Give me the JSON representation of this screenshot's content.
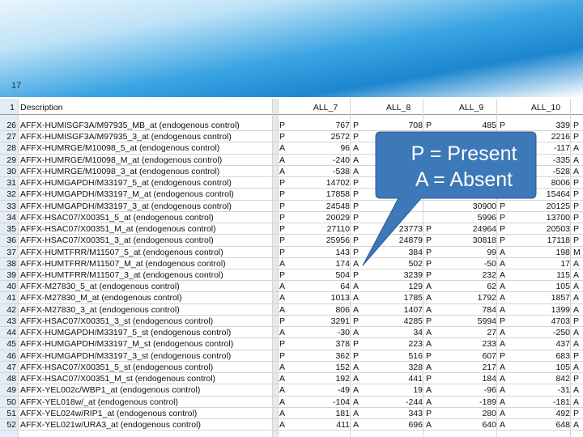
{
  "slide": {
    "page_number": "17",
    "callout": [
      "P = Present",
      "A = Absent"
    ]
  },
  "table": {
    "header": {
      "row": 1,
      "cells": [
        "Description",
        "ALL_7",
        "ALL_8",
        "ALL_9",
        "ALL_10"
      ]
    },
    "rows": [
      [
        26,
        "AFFX-HUMISGF3A/M97935_MB_at (endogenous control)",
        "P",
        767,
        "P",
        708,
        "P",
        485,
        "P",
        339,
        "P"
      ],
      [
        27,
        "AFFX-HUMISGF3A/M97935_3_at (endogenous control)",
        "P",
        2572,
        "P",
        null,
        null,
        null,
        null,
        2216,
        "P"
      ],
      [
        28,
        "AFFX-HUMRGE/M10098_5_at (endogenous control)",
        "A",
        96,
        "A",
        null,
        null,
        null,
        null,
        -117,
        "A"
      ],
      [
        29,
        "AFFX-HUMRGE/M10098_M_at (endogenous control)",
        "A",
        -240,
        "A",
        null,
        null,
        null,
        null,
        -335,
        "A"
      ],
      [
        30,
        "AFFX-HUMRGE/M10098_3_at (endogenous control)",
        "A",
        -538,
        "A",
        null,
        null,
        null,
        null,
        -528,
        "A"
      ],
      [
        31,
        "AFFX-HUMGAPDH/M33197_5_at (endogenous control)",
        "P",
        14702,
        "P",
        null,
        null,
        null,
        null,
        8006,
        "P"
      ],
      [
        32,
        "AFFX-HUMGAPDH/M33197_M_at (endogenous control)",
        "P",
        17858,
        "P",
        null,
        null,
        null,
        null,
        15464,
        "P"
      ],
      [
        33,
        "AFFX-HUMGAPDH/M33197_3_at (endogenous control)",
        "P",
        24548,
        "P",
        null,
        null,
        30900,
        "P",
        20125,
        "P"
      ],
      [
        34,
        "AFFX-HSAC07/X00351_5_at (endogenous control)",
        "P",
        20029,
        "P",
        null,
        null,
        5996,
        "P",
        13700,
        "P"
      ],
      [
        35,
        "AFFX-HSAC07/X00351_M_at (endogenous control)",
        "P",
        27110,
        "P",
        23773,
        "P",
        24964,
        "P",
        20503,
        "P"
      ],
      [
        36,
        "AFFX-HSAC07/X00351_3_at (endogenous control)",
        "P",
        25956,
        "P",
        24879,
        "P",
        30818,
        "P",
        17118,
        "P"
      ],
      [
        37,
        "AFFX-HUMTFRR/M11507_5_at (endogenous control)",
        "P",
        143,
        "P",
        384,
        "P",
        99,
        "A",
        198,
        "M"
      ],
      [
        38,
        "AFFX-HUMTFRR/M11507_M_at (endogenous control)",
        "A",
        174,
        "A",
        502,
        "P",
        -50,
        "A",
        17,
        "A"
      ],
      [
        39,
        "AFFX-HUMTFRR/M11507_3_at (endogenous control)",
        "P",
        504,
        "P",
        3239,
        "P",
        232,
        "A",
        115,
        "A"
      ],
      [
        40,
        "AFFX-M27830_5_at (endogenous control)",
        "A",
        64,
        "A",
        129,
        "A",
        62,
        "A",
        105,
        "A"
      ],
      [
        41,
        "AFFX-M27830_M_at (endogenous control)",
        "A",
        1013,
        "A",
        1785,
        "A",
        1792,
        "A",
        1857,
        "A"
      ],
      [
        42,
        "AFFX-M27830_3_at (endogenous control)",
        "A",
        806,
        "A",
        1407,
        "A",
        784,
        "A",
        1399,
        "A"
      ],
      [
        43,
        "AFFX-HSAC07/X00351_3_st (endogenous control)",
        "P",
        3291,
        "P",
        4285,
        "P",
        5994,
        "P",
        4703,
        "P"
      ],
      [
        44,
        "AFFX-HUMGAPDH/M33197_5_st (endogenous control)",
        "A",
        -30,
        "A",
        34,
        "A",
        27,
        "A",
        -250,
        "A"
      ],
      [
        45,
        "AFFX-HUMGAPDH/M33197_M_st (endogenous control)",
        "P",
        378,
        "P",
        223,
        "A",
        233,
        "A",
        437,
        "A"
      ],
      [
        46,
        "AFFX-HUMGAPDH/M33197_3_st (endogenous control)",
        "P",
        362,
        "P",
        516,
        "P",
        607,
        "P",
        683,
        "P"
      ],
      [
        47,
        "AFFX-HSAC07/X00351_5_st (endogenous control)",
        "A",
        152,
        "A",
        328,
        "A",
        217,
        "A",
        105,
        "A"
      ],
      [
        48,
        "AFFX-HSAC07/X00351_M_st (endogenous control)",
        "A",
        192,
        "A",
        441,
        "P",
        184,
        "A",
        842,
        "P"
      ],
      [
        49,
        "AFFX-YEL002c/WBP1_at (endogenous control)",
        "A",
        -49,
        "A",
        19,
        "A",
        -96,
        "A",
        -31,
        "A"
      ],
      [
        50,
        "AFFX-YEL018w/_at (endogenous control)",
        "A",
        -104,
        "A",
        -244,
        "A",
        -189,
        "A",
        -181,
        "A"
      ],
      [
        51,
        "AFFX-YEL024w/RIP1_at (endogenous control)",
        "A",
        181,
        "A",
        343,
        "P",
        280,
        "A",
        492,
        "P"
      ],
      [
        52,
        "AFFX-YEL021w/URA3_at (endogenous control)",
        "A",
        411,
        "A",
        696,
        "A",
        640,
        "A",
        648,
        "A"
      ]
    ]
  }
}
